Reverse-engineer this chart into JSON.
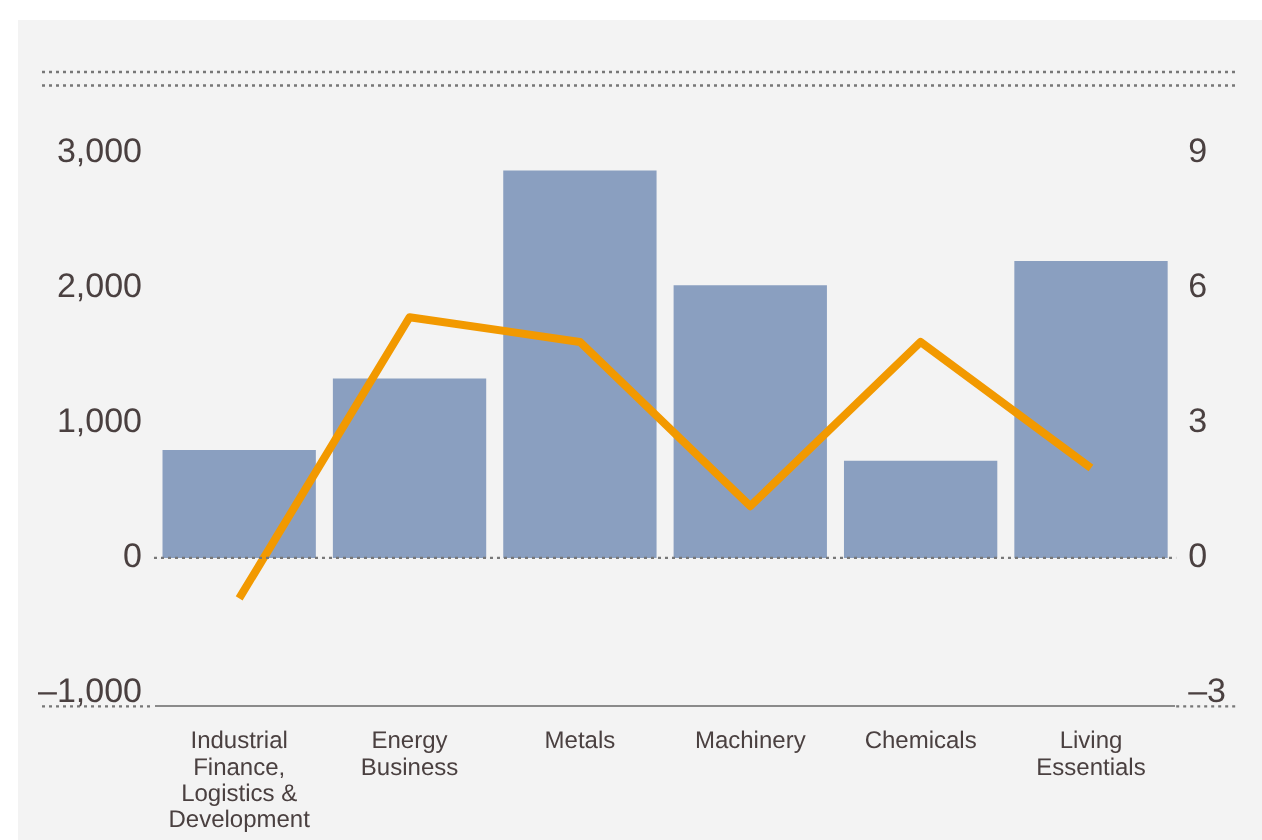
{
  "chart_data": {
    "type": "bar",
    "categories": [
      "Industrial Finance, Logistics & Development",
      "Energy Business",
      "Metals",
      "Machinery",
      "Chemicals",
      "Living Essentials"
    ],
    "series": [
      {
        "color": "#8a9fc0",
        "values": [
          800,
          1330,
          2870,
          2020,
          720,
          2200
        ]
      },
      {
        "type": "line",
        "axis": "y2",
        "color": "#f29900",
        "values": [
          -0.9,
          5.35,
          4.8,
          1.15,
          4.8,
          2.0
        ]
      }
    ],
    "ylim": [
      -1100,
      3600
    ],
    "yticks": [
      {
        "value": -1000,
        "label": "–1,000"
      },
      0,
      {
        "value": 1000,
        "label": "1,000"
      },
      {
        "value": 2000,
        "label": "2,000"
      },
      {
        "value": 3000,
        "label": "3,000"
      }
    ],
    "y2lim": [
      -3.3,
      10.8
    ],
    "y2ticks": [
      {
        "value": -3,
        "label": "–3"
      },
      0,
      3,
      6,
      9
    ],
    "ref_lines": [
      {
        "axis": "y",
        "value": 0,
        "line_style": "dotted",
        "color": "#777777"
      },
      {
        "axis": "y",
        "value": 3500,
        "line_style": "dotted",
        "color": "#777777"
      }
    ],
    "grid": false,
    "legend": false,
    "marker": "none",
    "line_style": "solid"
  }
}
